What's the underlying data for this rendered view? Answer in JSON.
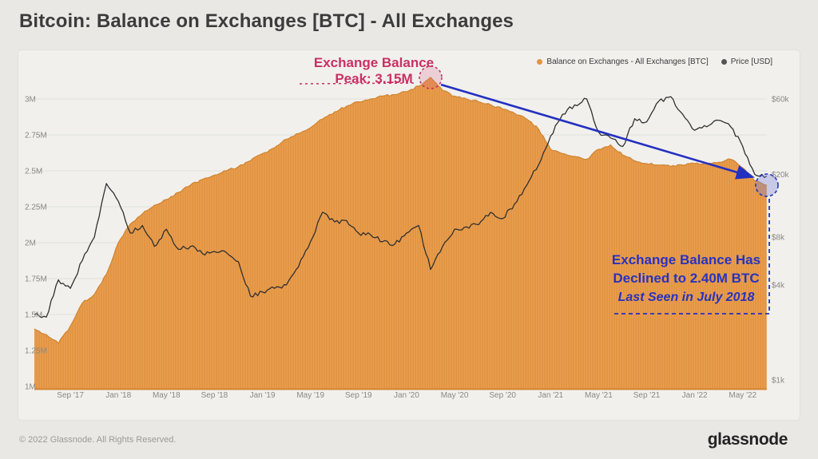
{
  "title": "Bitcoin: Balance on Exchanges [BTC] - All Exchanges",
  "legend": {
    "balance": "Balance on Exchanges - All Exchanges [BTC]",
    "price": "Price [USD]"
  },
  "watermark": "glassnode",
  "footer": {
    "copyright": "© 2022 Glassnode. All Rights Reserved.",
    "brand": "glassnode"
  },
  "annotations": {
    "peak": {
      "line1": "Exchange Balance",
      "line2": "Peak: 3.15M"
    },
    "decline": {
      "line1": "Exchange Balance Has",
      "line2": "Declined to 2.40M BTC",
      "line3": "Last Seen in July 2018"
    }
  },
  "colors": {
    "page_bg": "#e9e8e5",
    "card_bg": "#f1f0ed",
    "balance_area": "#e49440",
    "balance_edge": "#d0842f",
    "price_line": "#303030",
    "crimson": "#c73163",
    "blue": "#2733be",
    "grid": "#e0dfda"
  },
  "chart_data": {
    "type": "area",
    "title": "Bitcoin: Balance on Exchanges [BTC] - All Exchanges",
    "x_months": [
      "2017-06",
      "2017-07",
      "2017-08",
      "2017-09",
      "2017-10",
      "2017-11",
      "2017-12",
      "2018-01",
      "2018-02",
      "2018-03",
      "2018-04",
      "2018-05",
      "2018-06",
      "2018-07",
      "2018-08",
      "2018-09",
      "2018-10",
      "2018-11",
      "2018-12",
      "2019-01",
      "2019-02",
      "2019-03",
      "2019-04",
      "2019-05",
      "2019-06",
      "2019-07",
      "2019-08",
      "2019-09",
      "2019-10",
      "2019-11",
      "2019-12",
      "2020-01",
      "2020-02",
      "2020-03",
      "2020-04",
      "2020-05",
      "2020-06",
      "2020-07",
      "2020-08",
      "2020-09",
      "2020-10",
      "2020-11",
      "2020-12",
      "2021-01",
      "2021-02",
      "2021-03",
      "2021-04",
      "2021-05",
      "2021-06",
      "2021-07",
      "2021-08",
      "2021-09",
      "2021-10",
      "2021-11",
      "2021-12",
      "2022-01",
      "2022-02",
      "2022-03",
      "2022-04",
      "2022-05",
      "2022-06",
      "2022-07"
    ],
    "x_axis_tick_labels": [
      "Sep '17",
      "Jan '18",
      "May '18",
      "Sep '18",
      "Jan '19",
      "May '19",
      "Sep '19",
      "Jan '20",
      "May '20",
      "Sep '20",
      "Jan '21",
      "May '21",
      "Sep '21",
      "Jan '22",
      "May '22"
    ],
    "series": [
      {
        "name": "Balance on Exchanges - All Exchanges [BTC]",
        "type": "area",
        "unit": "M BTC",
        "axis": "left",
        "values": [
          1.4,
          1.36,
          1.3,
          1.42,
          1.58,
          1.64,
          1.78,
          2.0,
          2.13,
          2.2,
          2.26,
          2.3,
          2.35,
          2.4,
          2.44,
          2.47,
          2.5,
          2.53,
          2.57,
          2.62,
          2.66,
          2.72,
          2.76,
          2.8,
          2.86,
          2.91,
          2.95,
          2.98,
          3.0,
          3.02,
          3.03,
          3.05,
          3.09,
          3.15,
          3.06,
          3.02,
          3.0,
          2.98,
          2.96,
          2.93,
          2.9,
          2.86,
          2.79,
          2.65,
          2.62,
          2.6,
          2.58,
          2.65,
          2.68,
          2.61,
          2.57,
          2.55,
          2.54,
          2.53,
          2.54,
          2.55,
          2.55,
          2.56,
          2.58,
          2.52,
          2.43,
          2.4
        ]
      },
      {
        "name": "Price [USD]",
        "type": "line",
        "unit": "USD",
        "axis": "right",
        "values": [
          2600,
          2500,
          4300,
          3800,
          5700,
          8000,
          17500,
          13500,
          8500,
          9500,
          7000,
          9000,
          6700,
          7000,
          6300,
          6500,
          6400,
          5600,
          3400,
          3600,
          3800,
          4000,
          5200,
          7500,
          11500,
          10000,
          10200,
          8500,
          8300,
          7500,
          7200,
          8500,
          9500,
          5000,
          7000,
          9000,
          9300,
          9600,
          11500,
          10500,
          13000,
          17000,
          23000,
          35000,
          48000,
          55000,
          60000,
          37000,
          34000,
          30000,
          45000,
          43000,
          58000,
          62000,
          48000,
          38000,
          40000,
          44000,
          40000,
          30000,
          20000,
          19500
        ]
      }
    ],
    "y_left": {
      "scale": "linear",
      "range": [
        1.0,
        3.0
      ],
      "tick_values": [
        1.0,
        1.25,
        1.5,
        1.75,
        2.0,
        2.25,
        2.5,
        2.75,
        3.0
      ],
      "tick_labels": [
        "1M",
        "1.25M",
        "1.5M",
        "1.75M",
        "2M",
        "2.25M",
        "2.5M",
        "2.75M",
        "3M"
      ]
    },
    "y_right": {
      "scale": "log",
      "tick_values": [
        1000,
        4000,
        8000,
        20000,
        60000
      ],
      "tick_labels": [
        "$1k",
        "$4k",
        "$8k",
        "$20k",
        "$60k"
      ]
    },
    "annotations": [
      {
        "type": "point",
        "x": "2020-03",
        "series": "balance",
        "value_label": "Peak: 3.15M"
      },
      {
        "type": "point",
        "x": "2022-07",
        "series": "balance",
        "value_label": "Declined to 2.40M BTC"
      }
    ],
    "legend_position": "top-right",
    "grid": "horizontal"
  }
}
